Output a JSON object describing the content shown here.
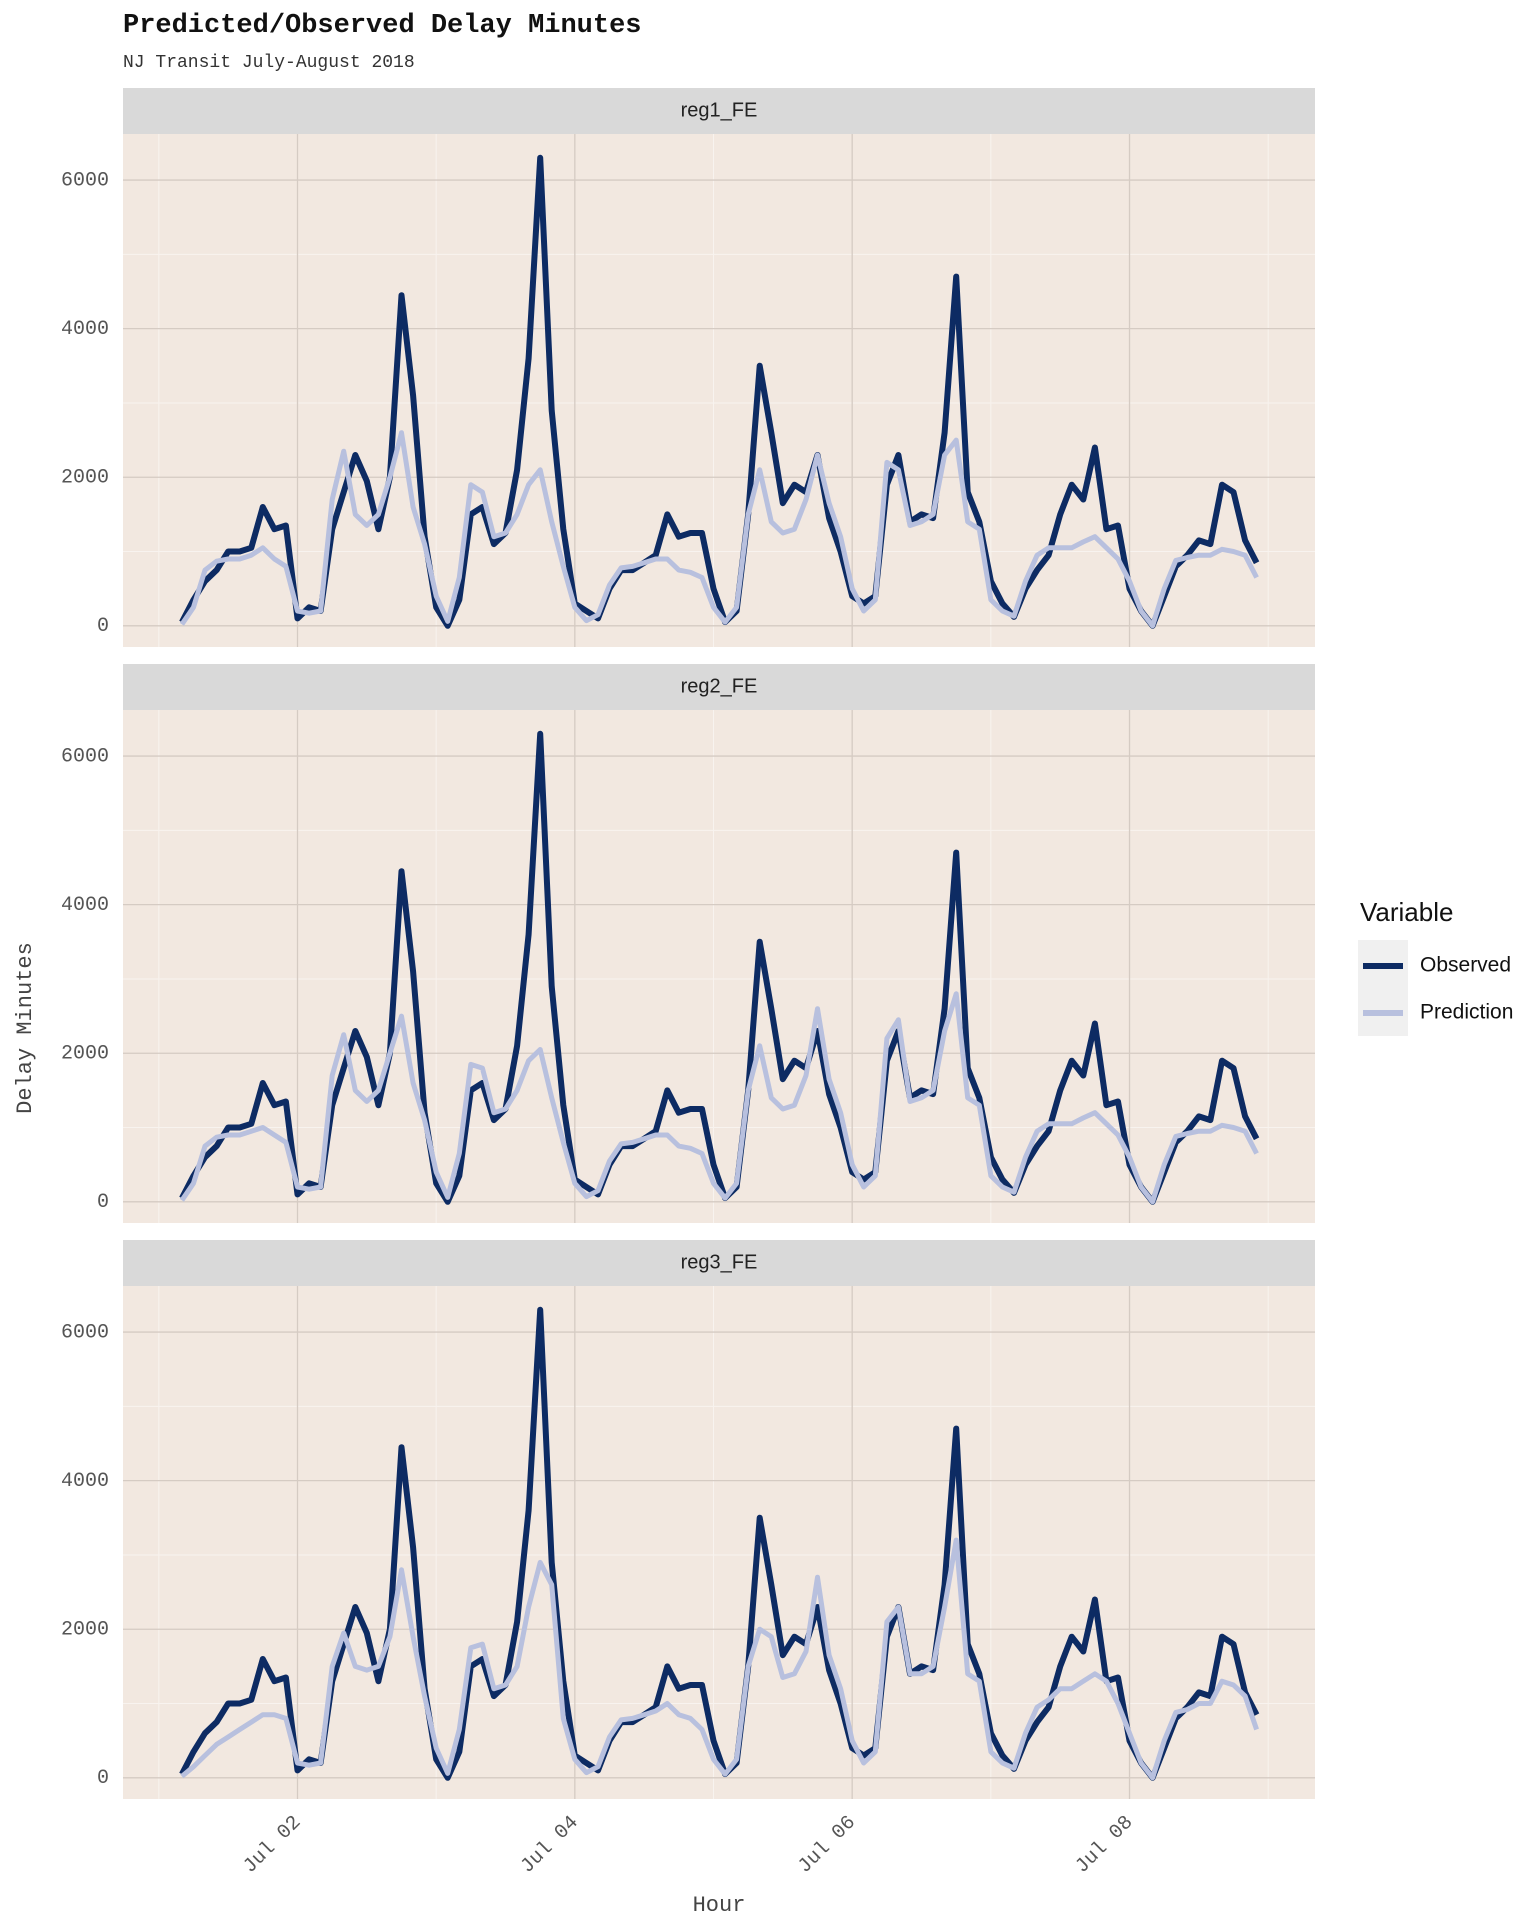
{
  "title": "Predicted/Observed Delay Minutes",
  "subtitle": "NJ Transit July-August 2018",
  "x_label": "Hour",
  "y_label": "Delay Minutes",
  "legend_title": "Variable",
  "chart_data": [
    {
      "type": "line",
      "title": "reg1_FE",
      "grid": true,
      "x": [
        4,
        6,
        8,
        10,
        12,
        14,
        16,
        18,
        20,
        22,
        24,
        26,
        28,
        30,
        32,
        34,
        36,
        38,
        40,
        42,
        44,
        46,
        48,
        50,
        52,
        54,
        56,
        58,
        60,
        62,
        64,
        66,
        68,
        70,
        72,
        74,
        76,
        78,
        80,
        82,
        84,
        86,
        88,
        90,
        92,
        94,
        96,
        98,
        100,
        102,
        104,
        106,
        108,
        110,
        112,
        114,
        116,
        118,
        120,
        122,
        124,
        126,
        128,
        130,
        132,
        134,
        136,
        138,
        140,
        142,
        144,
        146,
        148,
        150,
        152,
        154,
        156,
        158,
        160,
        162,
        164,
        166,
        168,
        170,
        172,
        174,
        176,
        178,
        180,
        182,
        184,
        186,
        188,
        190
      ],
      "xlim": [
        -6.2,
        200.1
      ],
      "xticks": [
        {
          "value": 24,
          "label": "Jul 02"
        },
        {
          "value": 72,
          "label": "Jul 04"
        },
        {
          "value": 120,
          "label": "Jul 06"
        },
        {
          "value": 168,
          "label": "Jul 08"
        }
      ],
      "ylim": [
        -285,
        6620
      ],
      "yticks": [
        0,
        2000,
        4000,
        6000
      ],
      "series": [
        {
          "name": "Observed",
          "color": "#0d2b63",
          "values": [
            50,
            350,
            600,
            750,
            1000,
            1000,
            1050,
            1600,
            1300,
            1350,
            100,
            250,
            200,
            1300,
            1800,
            2300,
            1950,
            1300,
            2000,
            4450,
            3100,
            1200,
            250,
            0,
            350,
            1500,
            1600,
            1100,
            1250,
            2100,
            3600,
            6300,
            2900,
            1300,
            300,
            200,
            100,
            500,
            750,
            750,
            850,
            950,
            1500,
            1200,
            1250,
            1250,
            500,
            50,
            200,
            1500,
            3500,
            2600,
            1650,
            1900,
            1800,
            2300,
            1450,
            1000,
            400,
            300,
            400,
            1900,
            2300,
            1400,
            1500,
            1450,
            2600,
            4700,
            1800,
            1400,
            600,
            300,
            120,
            500,
            750,
            950,
            1500,
            1900,
            1700,
            2400,
            1300,
            1350,
            500,
            200,
            0,
            400,
            800,
            950,
            1150,
            1100,
            1900,
            1800,
            1150,
            850
          ]
        },
        {
          "name": "Prediction",
          "color": "#b8c0de",
          "values": [
            20,
            250,
            750,
            870,
            900,
            900,
            950,
            1050,
            900,
            800,
            200,
            170,
            200,
            1700,
            2350,
            1500,
            1350,
            1500,
            2000,
            2600,
            1600,
            1100,
            400,
            60,
            650,
            1900,
            1800,
            1200,
            1250,
            1500,
            1900,
            2100,
            1400,
            800,
            250,
            70,
            150,
            550,
            780,
            800,
            850,
            900,
            900,
            750,
            720,
            650,
            250,
            50,
            250,
            1500,
            2100,
            1400,
            1250,
            1300,
            1700,
            2300,
            1650,
            1200,
            500,
            200,
            350,
            2200,
            2100,
            1350,
            1400,
            1500,
            2300,
            2500,
            1400,
            1300,
            350,
            200,
            130,
            600,
            950,
            1050,
            1050,
            1050,
            1130,
            1200,
            1050,
            900,
            600,
            200,
            0,
            500,
            880,
            920,
            950,
            950,
            1030,
            1000,
            950,
            650
          ]
        }
      ]
    },
    {
      "type": "line",
      "title": "reg2_FE",
      "grid": true,
      "x": [
        4,
        6,
        8,
        10,
        12,
        14,
        16,
        18,
        20,
        22,
        24,
        26,
        28,
        30,
        32,
        34,
        36,
        38,
        40,
        42,
        44,
        46,
        48,
        50,
        52,
        54,
        56,
        58,
        60,
        62,
        64,
        66,
        68,
        70,
        72,
        74,
        76,
        78,
        80,
        82,
        84,
        86,
        88,
        90,
        92,
        94,
        96,
        98,
        100,
        102,
        104,
        106,
        108,
        110,
        112,
        114,
        116,
        118,
        120,
        122,
        124,
        126,
        128,
        130,
        132,
        134,
        136,
        138,
        140,
        142,
        144,
        146,
        148,
        150,
        152,
        154,
        156,
        158,
        160,
        162,
        164,
        166,
        168,
        170,
        172,
        174,
        176,
        178,
        180,
        182,
        184,
        186,
        188,
        190
      ],
      "xlim": [
        -6.2,
        200.1
      ],
      "xticks": [
        {
          "value": 24,
          "label": "Jul 02"
        },
        {
          "value": 72,
          "label": "Jul 04"
        },
        {
          "value": 120,
          "label": "Jul 06"
        },
        {
          "value": 168,
          "label": "Jul 08"
        }
      ],
      "ylim": [
        -285,
        6620
      ],
      "yticks": [
        0,
        2000,
        4000,
        6000
      ],
      "series": [
        {
          "name": "Observed",
          "color": "#0d2b63",
          "values": [
            50,
            350,
            600,
            750,
            1000,
            1000,
            1050,
            1600,
            1300,
            1350,
            100,
            250,
            200,
            1300,
            1800,
            2300,
            1950,
            1300,
            2000,
            4450,
            3100,
            1200,
            250,
            0,
            350,
            1500,
            1600,
            1100,
            1250,
            2100,
            3600,
            6300,
            2900,
            1300,
            300,
            200,
            100,
            500,
            750,
            750,
            850,
            950,
            1500,
            1200,
            1250,
            1250,
            500,
            50,
            200,
            1500,
            3500,
            2600,
            1650,
            1900,
            1800,
            2300,
            1450,
            1000,
            400,
            300,
            400,
            1900,
            2300,
            1400,
            1500,
            1450,
            2600,
            4700,
            1800,
            1400,
            600,
            300,
            120,
            500,
            750,
            950,
            1500,
            1900,
            1700,
            2400,
            1300,
            1350,
            500,
            200,
            0,
            400,
            800,
            950,
            1150,
            1100,
            1900,
            1800,
            1150,
            850
          ]
        },
        {
          "name": "Prediction",
          "color": "#b8c0de",
          "values": [
            20,
            250,
            750,
            870,
            900,
            900,
            950,
            1000,
            900,
            800,
            200,
            170,
            200,
            1700,
            2250,
            1500,
            1350,
            1500,
            2000,
            2500,
            1600,
            1100,
            400,
            60,
            650,
            1850,
            1800,
            1200,
            1250,
            1500,
            1900,
            2050,
            1400,
            800,
            250,
            70,
            150,
            550,
            780,
            800,
            850,
            900,
            900,
            750,
            720,
            650,
            250,
            50,
            250,
            1500,
            2100,
            1400,
            1250,
            1300,
            1700,
            2600,
            1650,
            1200,
            500,
            200,
            350,
            2200,
            2450,
            1350,
            1400,
            1500,
            2300,
            2800,
            1400,
            1300,
            350,
            200,
            130,
            600,
            950,
            1050,
            1050,
            1050,
            1130,
            1200,
            1050,
            900,
            600,
            200,
            0,
            500,
            880,
            920,
            950,
            950,
            1030,
            1000,
            950,
            650
          ]
        }
      ]
    },
    {
      "type": "line",
      "title": "reg3_FE",
      "grid": true,
      "x": [
        4,
        6,
        8,
        10,
        12,
        14,
        16,
        18,
        20,
        22,
        24,
        26,
        28,
        30,
        32,
        34,
        36,
        38,
        40,
        42,
        44,
        46,
        48,
        50,
        52,
        54,
        56,
        58,
        60,
        62,
        64,
        66,
        68,
        70,
        72,
        74,
        76,
        78,
        80,
        82,
        84,
        86,
        88,
        90,
        92,
        94,
        96,
        98,
        100,
        102,
        104,
        106,
        108,
        110,
        112,
        114,
        116,
        118,
        120,
        122,
        124,
        126,
        128,
        130,
        132,
        134,
        136,
        138,
        140,
        142,
        144,
        146,
        148,
        150,
        152,
        154,
        156,
        158,
        160,
        162,
        164,
        166,
        168,
        170,
        172,
        174,
        176,
        178,
        180,
        182,
        184,
        186,
        188,
        190
      ],
      "xlim": [
        -6.2,
        200.1
      ],
      "xticks": [
        {
          "value": 24,
          "label": "Jul 02"
        },
        {
          "value": 72,
          "label": "Jul 04"
        },
        {
          "value": 120,
          "label": "Jul 06"
        },
        {
          "value": 168,
          "label": "Jul 08"
        }
      ],
      "ylim": [
        -285,
        6620
      ],
      "yticks": [
        0,
        2000,
        4000,
        6000
      ],
      "series": [
        {
          "name": "Observed",
          "color": "#0d2b63",
          "values": [
            50,
            350,
            600,
            750,
            1000,
            1000,
            1050,
            1600,
            1300,
            1350,
            100,
            250,
            200,
            1300,
            1800,
            2300,
            1950,
            1300,
            2000,
            4450,
            3100,
            1200,
            250,
            0,
            350,
            1500,
            1600,
            1100,
            1250,
            2100,
            3600,
            6300,
            2900,
            1300,
            300,
            200,
            100,
            500,
            750,
            750,
            850,
            950,
            1500,
            1200,
            1250,
            1250,
            500,
            50,
            200,
            1500,
            3500,
            2600,
            1650,
            1900,
            1800,
            2300,
            1450,
            1000,
            400,
            300,
            400,
            1900,
            2300,
            1400,
            1500,
            1450,
            2600,
            4700,
            1800,
            1400,
            600,
            300,
            120,
            500,
            750,
            950,
            1500,
            1900,
            1700,
            2400,
            1300,
            1350,
            500,
            200,
            0,
            400,
            800,
            950,
            1150,
            1100,
            1900,
            1800,
            1150,
            850
          ]
        },
        {
          "name": "Prediction",
          "color": "#b8c0de",
          "values": [
            20,
            150,
            300,
            450,
            550,
            650,
            750,
            850,
            850,
            800,
            200,
            170,
            200,
            1500,
            1950,
            1500,
            1450,
            1500,
            1900,
            2800,
            1900,
            1100,
            400,
            60,
            650,
            1750,
            1800,
            1200,
            1250,
            1500,
            2300,
            2900,
            2600,
            800,
            250,
            70,
            150,
            550,
            780,
            800,
            850,
            900,
            1000,
            850,
            800,
            650,
            250,
            50,
            250,
            1500,
            2000,
            1900,
            1350,
            1400,
            1700,
            2700,
            1650,
            1200,
            500,
            200,
            350,
            2100,
            2300,
            1400,
            1400,
            1500,
            2300,
            3200,
            1400,
            1300,
            350,
            200,
            130,
            600,
            950,
            1050,
            1200,
            1200,
            1300,
            1400,
            1300,
            1000,
            600,
            200,
            0,
            500,
            880,
            920,
            1000,
            1000,
            1300,
            1250,
            1100,
            650
          ]
        }
      ]
    }
  ]
}
